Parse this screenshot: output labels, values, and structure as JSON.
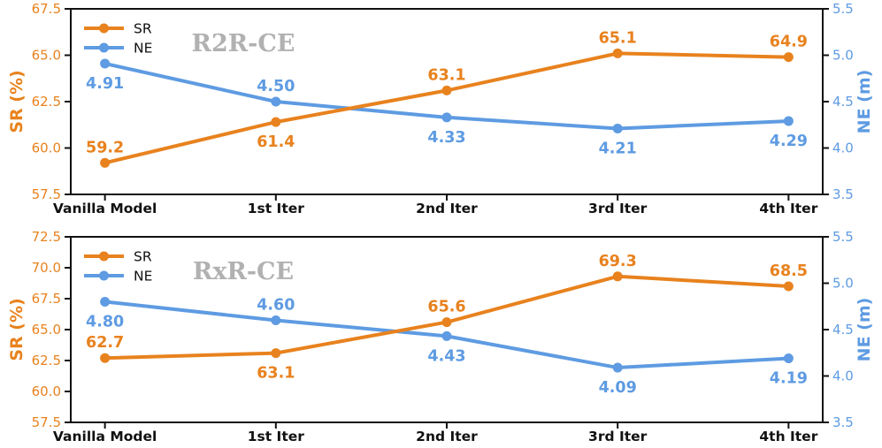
{
  "figure": {
    "background": "#ffffff",
    "spine_color": "#111111",
    "xlabel_color": "#111111"
  },
  "chart_data": [
    {
      "type": "line",
      "title": "R2R-CE",
      "title_color": "#b1b1b1",
      "categories": [
        "Vanilla Model",
        "1st Iter",
        "2nd Iter",
        "3rd Iter",
        "4th Iter"
      ],
      "left_axis": {
        "label": "SR (%)",
        "color": "#E8821E",
        "lim": [
          57.5,
          67.5
        ],
        "ticks": [
          "57.5",
          "60.0",
          "62.5",
          "65.0",
          "67.5"
        ]
      },
      "right_axis": {
        "label": "NE (m)",
        "color": "#5E9BE2",
        "lim": [
          3.5,
          5.5
        ],
        "ticks": [
          "3.5",
          "4.0",
          "4.5",
          "5.0",
          "5.5"
        ]
      },
      "legend": {
        "position": "upper-left",
        "entries": [
          "SR",
          "NE"
        ]
      },
      "series": [
        {
          "name": "SR",
          "axis": "left",
          "color": "#E8821E",
          "values": [
            59.2,
            61.4,
            63.1,
            65.1,
            64.9
          ],
          "point_labels": [
            "59.2",
            "61.4",
            "63.1",
            "65.1",
            "64.9"
          ],
          "label_sides": [
            "above",
            "below",
            "above",
            "above",
            "above"
          ]
        },
        {
          "name": "NE",
          "axis": "right",
          "color": "#5E9BE2",
          "values": [
            4.91,
            4.5,
            4.33,
            4.21,
            4.29
          ],
          "point_labels": [
            "4.91",
            "4.50",
            "4.33",
            "4.21",
            "4.29"
          ],
          "label_sides": [
            "below",
            "above",
            "below",
            "below",
            "below"
          ]
        }
      ]
    },
    {
      "type": "line",
      "title": "RxR-CE",
      "title_color": "#b1b1b1",
      "categories": [
        "Vanilla Model",
        "1st Iter",
        "2nd Iter",
        "3rd Iter",
        "4th Iter"
      ],
      "left_axis": {
        "label": "SR (%)",
        "color": "#E8821E",
        "lim": [
          57.5,
          72.5
        ],
        "ticks": [
          "57.5",
          "60.0",
          "62.5",
          "65.0",
          "67.5",
          "70.0",
          "72.5"
        ]
      },
      "right_axis": {
        "label": "NE (m)",
        "color": "#5E9BE2",
        "lim": [
          3.5,
          5.5
        ],
        "ticks": [
          "3.5",
          "4.0",
          "4.5",
          "5.0",
          "5.5"
        ]
      },
      "legend": {
        "position": "upper-left",
        "entries": [
          "SR",
          "NE"
        ]
      },
      "series": [
        {
          "name": "SR",
          "axis": "left",
          "color": "#E8821E",
          "values": [
            62.7,
            63.1,
            65.6,
            69.3,
            68.5
          ],
          "point_labels": [
            "62.7",
            "63.1",
            "65.6",
            "69.3",
            "68.5"
          ],
          "label_sides": [
            "above",
            "below",
            "above",
            "above",
            "above"
          ]
        },
        {
          "name": "NE",
          "axis": "right",
          "color": "#5E9BE2",
          "values": [
            4.8,
            4.6,
            4.43,
            4.09,
            4.19
          ],
          "point_labels": [
            "4.80",
            "4.60",
            "4.43",
            "4.09",
            "4.19"
          ],
          "label_sides": [
            "below",
            "above",
            "below",
            "below",
            "below"
          ]
        }
      ]
    }
  ]
}
